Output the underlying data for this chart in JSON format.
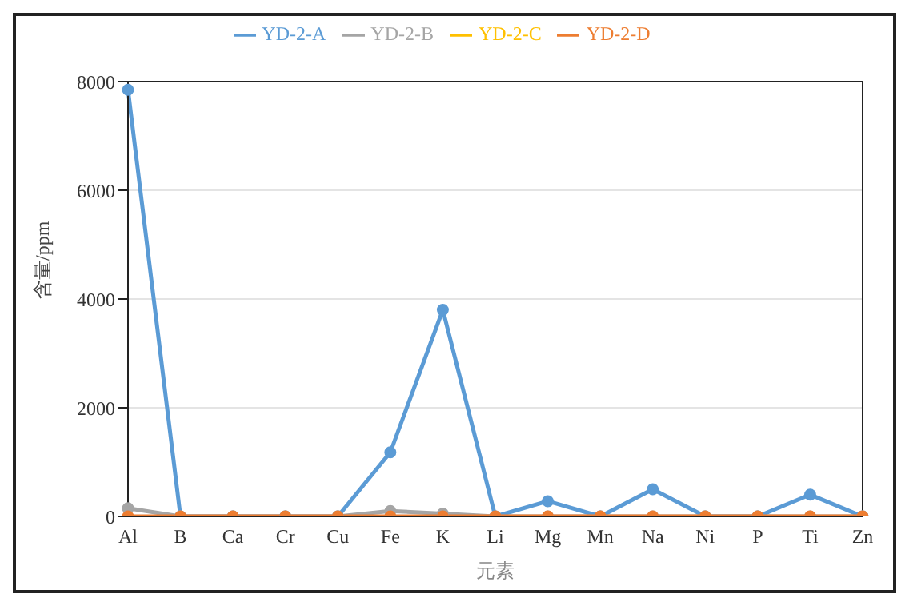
{
  "chart_data": {
    "type": "line",
    "xlabel": "元素",
    "ylabel": "含量/ppm",
    "categories": [
      "Al",
      "B",
      "Ca",
      "Cr",
      "Cu",
      "Fe",
      "K",
      "Li",
      "Mg",
      "Mn",
      "Na",
      "Ni",
      "P",
      "Ti",
      "Zn"
    ],
    "series": [
      {
        "name": "YD-2-A",
        "color": "#5b9bd5",
        "values": [
          7850,
          0,
          0,
          0,
          0,
          1180,
          3800,
          0,
          280,
          0,
          500,
          0,
          0,
          400,
          0
        ]
      },
      {
        "name": "YD-2-B",
        "color": "#a5a5a5",
        "values": [
          150,
          0,
          0,
          0,
          0,
          100,
          50,
          0,
          0,
          0,
          0,
          0,
          0,
          0,
          0
        ]
      },
      {
        "name": "YD-2-C",
        "color": "#ffc000",
        "values": [
          null,
          null,
          null,
          null,
          null,
          null,
          null,
          null,
          null,
          null,
          null,
          null,
          null,
          null,
          null
        ]
      },
      {
        "name": "YD-2-D",
        "color": "#ed7d31",
        "values": [
          0,
          0,
          0,
          0,
          0,
          0,
          0,
          0,
          0,
          0,
          0,
          0,
          0,
          0,
          0
        ]
      }
    ],
    "ylim": [
      0,
      8000
    ],
    "yticks": [
      0,
      2000,
      4000,
      6000,
      8000
    ],
    "grid": "y",
    "legend": "top",
    "marker": "circle",
    "line_style": "solid"
  }
}
